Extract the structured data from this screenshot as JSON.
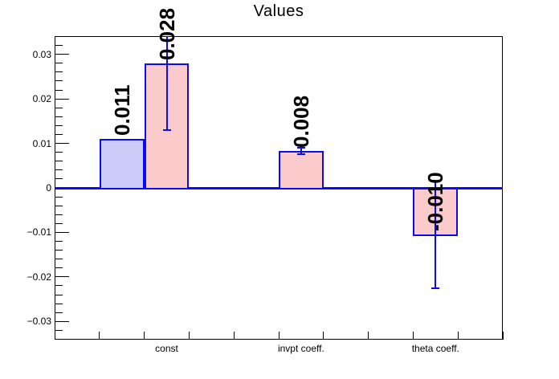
{
  "window": {
    "title": "Values"
  },
  "chart_data": {
    "type": "bar",
    "title": "Values",
    "n_bins": 10,
    "grid": false,
    "x_axis": {
      "categories": [
        {
          "label": "const",
          "bin": 3
        },
        {
          "label": "invpt coeff.",
          "bin": 6
        },
        {
          "label": "theta coeff.",
          "bin": 9
        }
      ]
    },
    "y_axis": {
      "ylim": [
        -0.0341,
        0.0341
      ],
      "major_ticks": [
        {
          "value": 0.03,
          "label": "0.03"
        },
        {
          "value": 0.02,
          "label": "0.02"
        },
        {
          "value": 0.01,
          "label": "0.01"
        },
        {
          "value": 0,
          "label": "0"
        },
        {
          "value": -0.01,
          "label": "−0.01"
        },
        {
          "value": -0.02,
          "label": "−0.02"
        },
        {
          "value": -0.03,
          "label": "−0.03"
        }
      ],
      "minor_step": 0.002
    },
    "bars": [
      {
        "bin": 2,
        "value": 0.011,
        "label": "0.011",
        "fill": "#ccccf8",
        "error": 0
      },
      {
        "bin": 3,
        "value": 0.028,
        "label": "0.028",
        "fill": "#fbcaca",
        "error": 0.015
      },
      {
        "bin": 6,
        "value": 0.0083,
        "label": "0.008",
        "fill": "#fbcaca",
        "error": 0.0008
      },
      {
        "bin": 9,
        "value": -0.0105,
        "label": "-0.010",
        "fill": "#fbcaca",
        "error": 0.012
      }
    ],
    "colors": {
      "bar_border": "#0b0bee",
      "error_line": "#0b0bee",
      "zero_line": "#0b0bee",
      "frame": "#000000",
      "text": "#000000"
    }
  }
}
